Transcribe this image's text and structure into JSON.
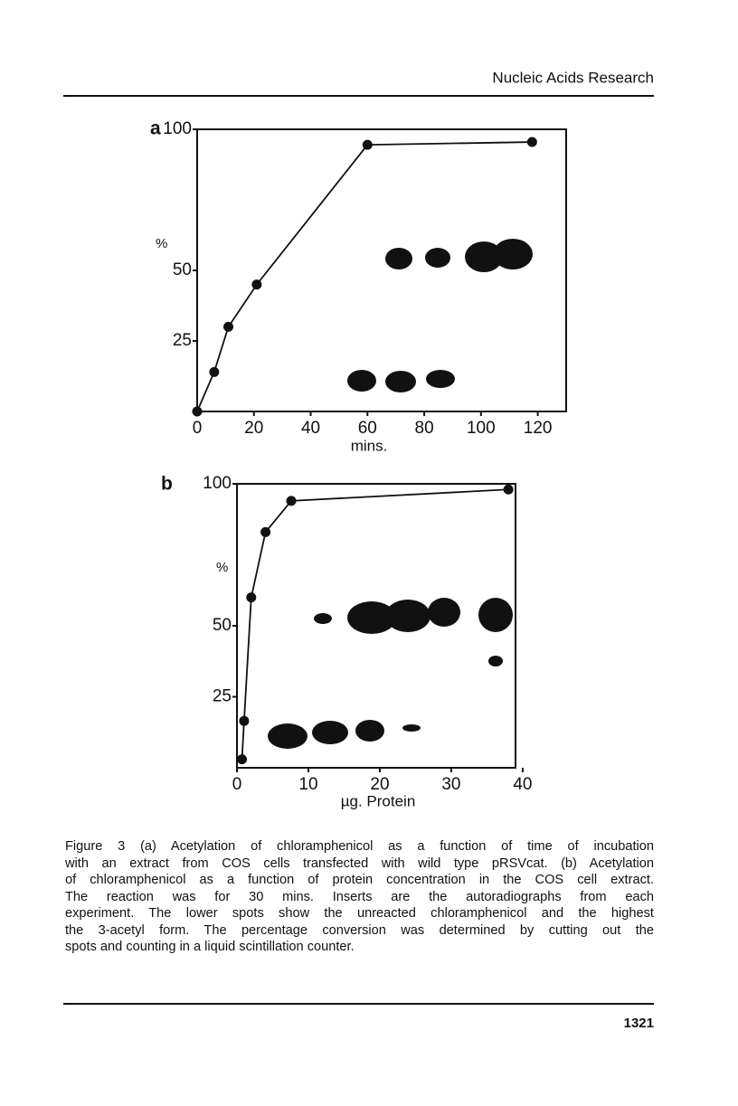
{
  "header": "Nucleic Acids Research",
  "chart_data": [
    {
      "type": "line",
      "panel_label": "a",
      "x_label": "mins.",
      "y_label": "%",
      "x": [
        0,
        6,
        11,
        21,
        60,
        118
      ],
      "values": [
        0,
        14,
        30,
        45,
        94.5,
        95.5
      ],
      "color": "#111111",
      "xlim": [
        0,
        130
      ],
      "ylim": [
        0,
        100
      ],
      "xticks": [
        0,
        20,
        40,
        60,
        80,
        100,
        120
      ],
      "yticks": [
        25,
        50,
        100
      ]
    },
    {
      "type": "line",
      "panel_label": "b",
      "x_label": "µg. Protein",
      "y_label": "%",
      "x": [
        0.7,
        1,
        2,
        4,
        7.6,
        38
      ],
      "values": [
        3,
        16.5,
        60,
        83,
        94,
        98
      ],
      "color": "#111111",
      "xlim": [
        0,
        39
      ],
      "ylim": [
        0,
        100
      ],
      "xticks": [
        0,
        10,
        20,
        30,
        40
      ],
      "yticks": [
        25,
        50,
        100
      ]
    }
  ],
  "caption": [
    "Figure 3 (a) Acetylation of chloramphenicol as a function of time of incubation",
    "with an extract from COS cells transfected with wild type pRSVcat. (b) Acetylation",
    "of chloramphenicol as a function of protein concentration in the COS cell extract.",
    "The reaction was for 30 mins. Inserts are the autoradiographs from each",
    "experiment. The lower spots show the unreacted chloramphenicol and the highest",
    "the 3-acetyl form. The percentage conversion was determined by cutting out the",
    "spots and counting in a liquid scintillation counter."
  ],
  "page_number": "1321"
}
